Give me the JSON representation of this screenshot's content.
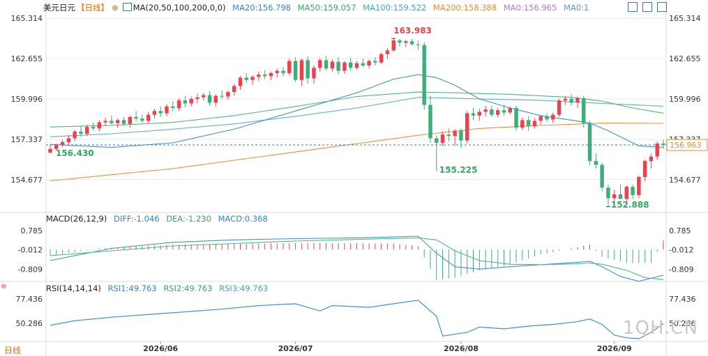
{
  "header": {
    "symbol": "美元日元",
    "period_tag": "【日线】",
    "ma_title": "MA(20,50,100,200,0,0)",
    "ma20": "MA20:156.798",
    "ma50": "MA50:159.057",
    "ma100": "MA100:159.522",
    "ma200": "MA200:158.388",
    "ma0a": "MA0:156.965",
    "ma0b": "MA0:1"
  },
  "macd_header": {
    "title": "MACD(26,12,9)",
    "diff": "DIFF:-1.046",
    "dea": "DEA:-1.230",
    "macd": "MACD:0.368"
  },
  "rsi_header": {
    "title": "RSI(14,14,14)",
    "rsi1": "RSI1:49.763",
    "rsi2": "RSI2:49.763",
    "rsi3": "RSI3:49.763"
  },
  "bottom_label": "日线",
  "watermark": "1QH.CN",
  "colors": {
    "up": "#e8434e",
    "down": "#3dae7a",
    "ma20": "#3f8fd8",
    "ma50": "#4cb87e",
    "ma100": "#5bb3c8",
    "ma200": "#f28b2f",
    "label_blue": "#2f86d6",
    "label_green": "#33a861",
    "label_orange": "#f08a2b",
    "label_red": "#e8434e",
    "grid": "#e9e9e9",
    "axis_text": "#333333",
    "header_text": "#222222"
  },
  "chart_data": [
    {
      "type": "candlestick",
      "title": "美元日元",
      "x": [
        "2026/06",
        "2026/07",
        "2026/08",
        "2026/09"
      ],
      "ylim": [
        152.6,
        165.6
      ],
      "y_ticks": [
        "165.314",
        "162.655",
        "159.996",
        "157.337",
        "154.677"
      ],
      "last_price": "156.963",
      "annotations": {
        "high": "163.983",
        "low_a": "156.430",
        "low_b": "155.225",
        "low_c": "152.888"
      },
      "candles": [
        [
          156.45,
          156.95,
          156.43,
          156.7
        ],
        [
          156.7,
          157.05,
          156.6,
          156.95
        ],
        [
          156.95,
          157.3,
          156.8,
          157.15
        ],
        [
          157.15,
          157.6,
          156.95,
          157.4
        ],
        [
          157.4,
          157.95,
          157.2,
          157.85
        ],
        [
          157.85,
          158.2,
          157.5,
          157.7
        ],
        [
          157.7,
          158.3,
          157.55,
          158.15
        ],
        [
          158.15,
          158.45,
          157.9,
          158.05
        ],
        [
          158.05,
          158.6,
          157.85,
          158.45
        ],
        [
          158.45,
          158.75,
          158.2,
          158.55
        ],
        [
          158.55,
          158.9,
          158.3,
          158.4
        ],
        [
          158.4,
          158.7,
          158.1,
          158.6
        ],
        [
          158.6,
          158.8,
          158.2,
          158.35
        ],
        [
          158.35,
          158.9,
          158.1,
          158.8
        ],
        [
          158.8,
          159.2,
          158.5,
          158.7
        ],
        [
          158.7,
          158.95,
          158.4,
          158.55
        ],
        [
          158.55,
          159.15,
          158.4,
          158.95
        ],
        [
          158.95,
          159.35,
          158.7,
          159.2
        ],
        [
          159.2,
          159.5,
          158.8,
          159.05
        ],
        [
          159.05,
          159.65,
          158.85,
          159.5
        ],
        [
          159.5,
          159.85,
          159.2,
          159.4
        ],
        [
          159.4,
          160.05,
          159.2,
          159.9
        ],
        [
          159.9,
          160.2,
          159.45,
          159.7
        ],
        [
          159.7,
          160.15,
          159.5,
          160.0
        ],
        [
          160.0,
          160.35,
          159.7,
          160.1
        ],
        [
          160.1,
          160.4,
          159.9,
          160.25
        ],
        [
          160.25,
          160.5,
          159.55,
          159.75
        ],
        [
          159.75,
          160.3,
          159.5,
          160.2
        ],
        [
          160.2,
          160.55,
          160.0,
          160.15
        ],
        [
          160.15,
          160.55,
          159.95,
          160.45
        ],
        [
          160.45,
          161.0,
          160.2,
          160.85
        ],
        [
          160.85,
          161.5,
          160.6,
          161.4
        ],
        [
          161.4,
          161.7,
          161.05,
          161.25
        ],
        [
          161.25,
          161.55,
          160.9,
          161.45
        ],
        [
          161.45,
          161.8,
          161.2,
          161.6
        ],
        [
          161.6,
          161.9,
          161.3,
          161.5
        ],
        [
          161.5,
          161.8,
          161.25,
          161.7
        ],
        [
          161.7,
          162.0,
          161.4,
          161.85
        ],
        [
          161.85,
          162.1,
          161.5,
          161.7
        ],
        [
          161.7,
          162.65,
          161.55,
          162.5
        ],
        [
          162.5,
          162.75,
          161.1,
          161.25
        ],
        [
          161.25,
          162.65,
          160.85,
          162.55
        ],
        [
          162.55,
          162.8,
          161.0,
          161.35
        ],
        [
          161.35,
          162.2,
          161.0,
          162.05
        ],
        [
          162.05,
          162.7,
          161.8,
          162.55
        ],
        [
          162.55,
          162.85,
          161.85,
          162.0
        ],
        [
          162.0,
          162.6,
          161.8,
          162.45
        ],
        [
          162.45,
          162.75,
          161.6,
          161.85
        ],
        [
          161.85,
          162.5,
          161.65,
          162.4
        ],
        [
          162.4,
          162.7,
          161.85,
          162.05
        ],
        [
          162.05,
          162.5,
          161.9,
          162.35
        ],
        [
          162.35,
          162.65,
          162.1,
          162.2
        ],
        [
          162.2,
          162.6,
          162.0,
          162.5
        ],
        [
          162.5,
          162.75,
          162.2,
          162.4
        ],
        [
          162.4,
          163.05,
          162.3,
          162.95
        ],
        [
          162.95,
          163.35,
          162.65,
          163.2
        ],
        [
          163.2,
          163.98,
          163.1,
          163.85
        ],
        [
          163.85,
          163.95,
          163.45,
          163.7
        ],
        [
          163.7,
          163.9,
          163.4,
          163.8
        ],
        [
          163.8,
          163.95,
          163.5,
          163.6
        ],
        [
          163.6,
          163.85,
          163.2,
          163.55
        ],
        [
          163.55,
          163.75,
          159.3,
          159.6
        ],
        [
          159.6,
          160.2,
          157.1,
          157.4
        ],
        [
          157.4,
          157.6,
          155.23,
          157.1
        ],
        [
          157.1,
          157.85,
          156.9,
          157.65
        ],
        [
          157.65,
          158.05,
          157.2,
          157.55
        ],
        [
          157.55,
          158.0,
          156.9,
          157.9
        ],
        [
          157.9,
          158.05,
          156.75,
          157.25
        ],
        [
          157.25,
          159.2,
          157.05,
          159.05
        ],
        [
          159.05,
          159.4,
          158.6,
          158.9
        ],
        [
          158.9,
          159.35,
          158.55,
          159.15
        ],
        [
          159.15,
          159.55,
          158.85,
          159.3
        ],
        [
          159.3,
          159.55,
          158.8,
          158.95
        ],
        [
          158.95,
          159.4,
          158.75,
          159.25
        ],
        [
          159.25,
          159.6,
          158.9,
          159.1
        ],
        [
          159.1,
          159.5,
          158.95,
          159.4
        ],
        [
          159.4,
          159.55,
          157.9,
          158.1
        ],
        [
          158.1,
          158.8,
          157.95,
          158.6
        ],
        [
          158.6,
          158.85,
          157.9,
          158.2
        ],
        [
          158.2,
          158.75,
          158.05,
          158.55
        ],
        [
          158.55,
          158.95,
          158.3,
          158.85
        ],
        [
          158.85,
          159.05,
          158.5,
          158.65
        ],
        [
          158.65,
          159.1,
          158.4,
          158.95
        ],
        [
          158.95,
          160.0,
          158.8,
          159.9
        ],
        [
          159.9,
          160.2,
          159.6,
          160.0
        ],
        [
          160.0,
          160.3,
          159.55,
          159.75
        ],
        [
          159.75,
          160.15,
          159.4,
          160.05
        ],
        [
          160.05,
          160.2,
          158.1,
          158.4
        ],
        [
          158.4,
          158.55,
          155.6,
          155.9
        ],
        [
          155.9,
          156.4,
          155.4,
          155.65
        ],
        [
          155.65,
          155.8,
          153.9,
          154.15
        ],
        [
          154.15,
          154.35,
          152.89,
          153.45
        ],
        [
          153.45,
          154.0,
          153.2,
          153.7
        ],
        [
          153.7,
          154.35,
          153.5,
          153.4
        ],
        [
          153.4,
          154.3,
          153.2,
          154.2
        ],
        [
          154.2,
          154.35,
          153.4,
          153.65
        ],
        [
          153.65,
          154.95,
          153.45,
          154.85
        ],
        [
          154.85,
          156.0,
          154.6,
          155.9
        ],
        [
          155.9,
          156.4,
          155.4,
          156.2
        ],
        [
          156.2,
          157.2,
          156.0,
          157.05
        ],
        [
          157.05,
          157.3,
          156.7,
          156.96
        ]
      ],
      "ma20": [
        [
          0,
          157.0
        ],
        [
          10,
          156.8
        ],
        [
          20,
          157.1
        ],
        [
          30,
          158.0
        ],
        [
          40,
          159.2
        ],
        [
          50,
          160.4
        ],
        [
          56,
          161.3
        ],
        [
          60,
          161.6
        ],
        [
          63,
          161.4
        ],
        [
          66,
          160.9
        ],
        [
          70,
          160.0
        ],
        [
          75,
          159.4
        ],
        [
          80,
          158.9
        ],
        [
          85,
          158.6
        ],
        [
          88,
          158.4
        ],
        [
          91,
          157.9
        ],
        [
          96,
          156.9
        ],
        [
          100,
          156.8
        ]
      ],
      "ma50": [
        [
          0,
          158.15
        ],
        [
          10,
          158.25
        ],
        [
          20,
          158.45
        ],
        [
          30,
          158.9
        ],
        [
          40,
          159.5
        ],
        [
          50,
          160.15
        ],
        [
          60,
          160.45
        ],
        [
          66,
          160.4
        ],
        [
          75,
          160.3
        ],
        [
          85,
          160.1
        ],
        [
          90,
          159.85
        ],
        [
          95,
          159.4
        ],
        [
          100,
          159.06
        ]
      ],
      "ma100": [
        [
          0,
          157.5
        ],
        [
          10,
          157.7
        ],
        [
          20,
          158.0
        ],
        [
          30,
          158.35
        ],
        [
          40,
          158.85
        ],
        [
          50,
          159.4
        ],
        [
          60,
          160.1
        ],
        [
          70,
          160.0
        ],
        [
          80,
          159.9
        ],
        [
          90,
          159.7
        ],
        [
          100,
          159.52
        ]
      ],
      "ma200": [
        [
          0,
          154.6
        ],
        [
          20,
          155.4
        ],
        [
          40,
          156.5
        ],
        [
          60,
          157.6
        ],
        [
          70,
          158.05
        ],
        [
          80,
          158.25
        ],
        [
          90,
          158.4
        ],
        [
          100,
          158.39
        ]
      ]
    },
    {
      "type": "bar",
      "title": "MACD(26,12,9)",
      "ylim": [
        -1.25,
        1.15
      ],
      "y_ticks": [
        "0.785",
        "-0.012",
        "-0.809"
      ],
      "histogram": [
        [
          0,
          -0.25
        ],
        [
          8,
          0.05
        ],
        [
          20,
          0.2
        ],
        [
          40,
          0.27
        ],
        [
          56,
          0.25
        ],
        [
          60,
          0.15
        ],
        [
          63,
          -1.25
        ],
        [
          66,
          -1.15
        ],
        [
          70,
          -0.85
        ],
        [
          75,
          -0.6
        ],
        [
          80,
          -0.2
        ],
        [
          86,
          0.1
        ],
        [
          88,
          0.2
        ],
        [
          90,
          -0.3
        ],
        [
          94,
          -0.55
        ],
        [
          98,
          -0.55
        ],
        [
          100,
          0.37
        ]
      ],
      "diff": [
        [
          0,
          -0.45
        ],
        [
          10,
          0.05
        ],
        [
          20,
          0.3
        ],
        [
          30,
          0.4
        ],
        [
          40,
          0.45
        ],
        [
          50,
          0.48
        ],
        [
          56,
          0.52
        ],
        [
          60,
          0.55
        ],
        [
          63,
          -0.15
        ],
        [
          66,
          -0.7
        ],
        [
          70,
          -0.8
        ],
        [
          75,
          -0.7
        ],
        [
          80,
          -0.62
        ],
        [
          86,
          -0.52
        ],
        [
          88,
          -0.48
        ],
        [
          90,
          -0.7
        ],
        [
          93,
          -1.1
        ],
        [
          96,
          -1.3
        ],
        [
          100,
          -1.05
        ]
      ],
      "dea": [
        [
          0,
          -0.25
        ],
        [
          10,
          -0.05
        ],
        [
          20,
          0.15
        ],
        [
          30,
          0.25
        ],
        [
          40,
          0.35
        ],
        [
          50,
          0.42
        ],
        [
          60,
          0.48
        ],
        [
          63,
          0.4
        ],
        [
          66,
          -0.05
        ],
        [
          70,
          -0.45
        ],
        [
          75,
          -0.6
        ],
        [
          80,
          -0.62
        ],
        [
          86,
          -0.58
        ],
        [
          88,
          -0.55
        ],
        [
          90,
          -0.6
        ],
        [
          94,
          -0.85
        ],
        [
          97,
          -1.15
        ],
        [
          100,
          -1.23
        ]
      ]
    },
    {
      "type": "line",
      "title": "RSI(14,14,14)",
      "ylim": [
        30,
        86
      ],
      "y_ticks": [
        "77.436",
        "50.286"
      ],
      "rsi": [
        [
          0,
          48
        ],
        [
          4,
          53
        ],
        [
          10,
          57
        ],
        [
          16,
          60
        ],
        [
          22,
          63
        ],
        [
          28,
          66
        ],
        [
          34,
          70
        ],
        [
          40,
          72
        ],
        [
          44,
          64
        ],
        [
          46,
          70
        ],
        [
          52,
          68
        ],
        [
          56,
          72
        ],
        [
          60,
          76
        ],
        [
          63,
          58
        ],
        [
          64,
          36
        ],
        [
          66,
          38
        ],
        [
          68,
          40
        ],
        [
          70,
          46
        ],
        [
          74,
          44
        ],
        [
          78,
          47
        ],
        [
          82,
          49
        ],
        [
          86,
          52
        ],
        [
          88,
          55
        ],
        [
          90,
          49
        ],
        [
          92,
          37
        ],
        [
          94,
          34
        ],
        [
          96,
          33
        ],
        [
          98,
          40
        ],
        [
          100,
          49.8
        ]
      ]
    }
  ]
}
